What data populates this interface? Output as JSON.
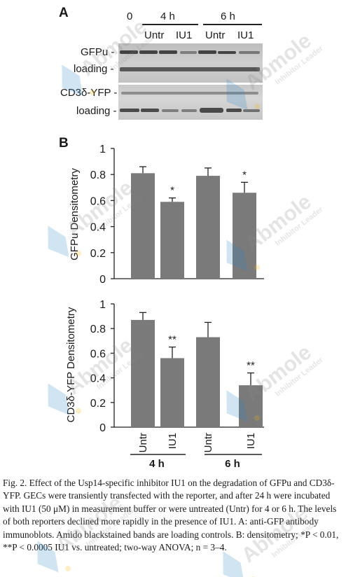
{
  "panel_a": {
    "letter": "A",
    "time_labels": {
      "t0": "0",
      "t4": "4 h",
      "t6": "6 h"
    },
    "treatment_labels": [
      "Untr",
      "IU1",
      "Untr",
      "IU1"
    ],
    "row_labels": {
      "gfpu": "GFPu -",
      "loading1": "loading -",
      "cd3": "CD3δ-YFP -",
      "loading2": "loading -"
    }
  },
  "panel_b": {
    "letter": "B"
  },
  "chart_data": [
    {
      "type": "bar",
      "ylabel": "GFPu Densitometry",
      "categories": [
        "Untr",
        "IU1",
        "Untr",
        "IU1"
      ],
      "values": [
        0.81,
        0.59,
        0.79,
        0.66
      ],
      "errors": [
        0.05,
        0.03,
        0.06,
        0.08
      ],
      "annotations": [
        "",
        "*",
        "",
        "*"
      ],
      "ylim": [
        0,
        1
      ],
      "yticks": [
        "0",
        "0.2",
        "0.4",
        "0.6",
        "0.8",
        "1"
      ]
    },
    {
      "type": "bar",
      "ylabel": "CD3δ-YFP Densitometry",
      "categories": [
        "Untr",
        "IU1",
        "Untr",
        "IU1"
      ],
      "values": [
        0.87,
        0.56,
        0.73,
        0.34
      ],
      "errors": [
        0.06,
        0.09,
        0.12,
        0.1
      ],
      "annotations": [
        "",
        "**",
        "",
        "**"
      ],
      "ylim": [
        0,
        1
      ],
      "yticks": [
        "0",
        "0.2",
        "0.4",
        "0.6",
        "0.8",
        "1"
      ],
      "group_labels": [
        "4 h",
        "6 h"
      ]
    }
  ],
  "caption": "Fig. 2. Effect of the Usp14-specific inhibitor IU1 on the degradation of GFPu and CD3δ-YFP. GECs were transiently transfected with the reporter, and after 24 h were incubated with IU1 (50 μM) in measurement buffer or were untreated (Untr) for 4 or 6 h. The levels of both reporters declined more rapidly in the presence of IU1. A: anti-GFP antibody immunoblots. Amido blackstained bands are loading controls. B: densitometry; *P < 0.01, **P < 0.0005 IU1 vs. untreated; two-way ANOVA; n = 3–4.",
  "watermark": {
    "brand": "Abmole",
    "tagline": "Inhibitor Leader"
  },
  "colors": {
    "bar": "#7a7a7a",
    "axis": "#222222",
    "blot_bg": "#c4c4c4",
    "watermark_blue": "#2f86c8"
  }
}
